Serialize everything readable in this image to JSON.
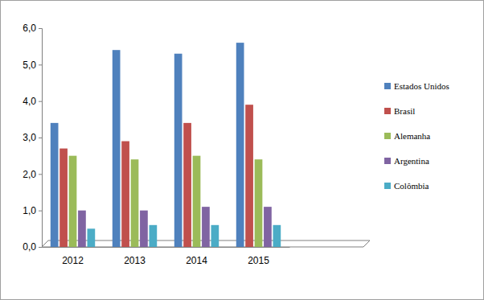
{
  "chart_data": {
    "type": "bar",
    "categories": [
      "2012",
      "2013",
      "2014",
      "2015"
    ],
    "series": [
      {
        "name": "Estados Unidos",
        "color": "#4f81bd",
        "values": [
          3.4,
          5.4,
          5.3,
          5.6
        ]
      },
      {
        "name": "Brasil",
        "color": "#c0504d",
        "values": [
          2.7,
          2.9,
          3.4,
          3.9
        ]
      },
      {
        "name": "Alemanha",
        "color": "#9bbb59",
        "values": [
          2.5,
          2.4,
          2.5,
          2.4
        ]
      },
      {
        "name": "Argentina",
        "color": "#8064a2",
        "values": [
          1.0,
          1.0,
          1.1,
          1.1
        ]
      },
      {
        "name": "Colômbia",
        "color": "#4bacc6",
        "values": [
          0.5,
          0.6,
          0.6,
          0.6
        ]
      }
    ],
    "ylim": [
      0,
      6
    ],
    "yticks": [
      {
        "value": 0,
        "label": "0,0"
      },
      {
        "value": 1,
        "label": "1,0"
      },
      {
        "value": 2,
        "label": "2,0"
      },
      {
        "value": 3,
        "label": "3,0"
      },
      {
        "value": 4,
        "label": "4,0"
      },
      {
        "value": 5,
        "label": "5,0"
      },
      {
        "value": 6,
        "label": "6,0"
      }
    ],
    "grid": false,
    "legend": "right"
  }
}
